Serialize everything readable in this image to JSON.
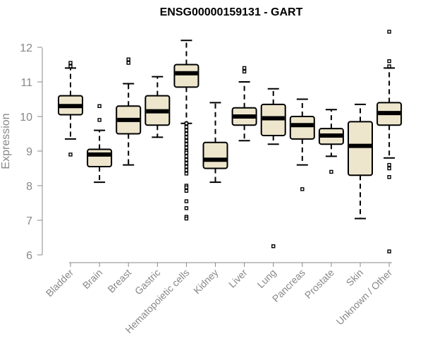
{
  "chart_data": {
    "type": "boxplot",
    "title": "ENSG00000159131 - GART",
    "ylabel": "Expression",
    "xlabel": "",
    "ylim": [
      6,
      12.5
    ],
    "yticks": [
      6,
      7,
      8,
      9,
      10,
      11,
      12
    ],
    "grid": false,
    "colors": {
      "box_fill": "#ede6cd",
      "box_stroke": "#000000",
      "median": "#000000",
      "axis": "#888888",
      "label": "#888888"
    },
    "categories": [
      "Bladder",
      "Brain",
      "Breast",
      "Gastric",
      "Hematopoietic cells",
      "Kidney",
      "Liver",
      "Lung",
      "Pancreas",
      "Prostate",
      "Skin",
      "Unknown / Other"
    ],
    "boxes": [
      {
        "category": "Bladder",
        "whisker_low": 9.35,
        "q1": 10.05,
        "median": 10.3,
        "q3": 10.6,
        "whisker_high": 11.4,
        "outliers": [
          8.9,
          11.45,
          11.55
        ]
      },
      {
        "category": "Brain",
        "whisker_low": 8.1,
        "q1": 8.55,
        "median": 8.9,
        "q3": 9.05,
        "whisker_high": 9.6,
        "outliers": [
          9.9,
          10.3
        ]
      },
      {
        "category": "Breast",
        "whisker_low": 8.6,
        "q1": 9.5,
        "median": 9.9,
        "q3": 10.3,
        "whisker_high": 10.95,
        "outliers": [
          11.55,
          11.65
        ]
      },
      {
        "category": "Gastric",
        "whisker_low": 9.4,
        "q1": 9.75,
        "median": 10.15,
        "q3": 10.6,
        "whisker_high": 11.15,
        "outliers": []
      },
      {
        "category": "Hematopoietic cells",
        "whisker_low": 9.8,
        "q1": 10.85,
        "median": 11.25,
        "q3": 11.5,
        "whisker_high": 12.2,
        "outliers": [
          9.8,
          9.7,
          9.6,
          9.5,
          9.4,
          9.3,
          9.2,
          9.1,
          9.0,
          8.95,
          8.85,
          8.75,
          8.65,
          8.55,
          8.45,
          8.35,
          8.0,
          7.95,
          7.85,
          7.55,
          7.35,
          7.1,
          7.05
        ]
      },
      {
        "category": "Kidney",
        "whisker_low": 8.1,
        "q1": 8.5,
        "median": 8.75,
        "q3": 9.25,
        "whisker_high": 10.4,
        "outliers": []
      },
      {
        "category": "Liver",
        "whisker_low": 9.3,
        "q1": 9.75,
        "median": 10.0,
        "q3": 10.25,
        "whisker_high": 11.0,
        "outliers": [
          11.3,
          11.4
        ]
      },
      {
        "category": "Lung",
        "whisker_low": 9.2,
        "q1": 9.45,
        "median": 9.95,
        "q3": 10.35,
        "whisker_high": 10.8,
        "outliers": [
          6.25
        ]
      },
      {
        "category": "Pancreas",
        "whisker_low": 8.6,
        "q1": 9.35,
        "median": 9.75,
        "q3": 10.0,
        "whisker_high": 10.5,
        "outliers": [
          7.9
        ]
      },
      {
        "category": "Prostate",
        "whisker_low": 8.85,
        "q1": 9.2,
        "median": 9.45,
        "q3": 9.65,
        "whisker_high": 10.2,
        "outliers": [
          8.4
        ]
      },
      {
        "category": "Skin",
        "whisker_low": 7.05,
        "q1": 8.3,
        "median": 9.15,
        "q3": 9.85,
        "whisker_high": 10.35,
        "outliers": []
      },
      {
        "category": "Unknown / Other",
        "whisker_low": 8.8,
        "q1": 9.75,
        "median": 10.1,
        "q3": 10.4,
        "whisker_high": 11.4,
        "outliers": [
          8.6,
          8.5,
          8.25,
          6.1,
          11.45,
          11.6,
          12.45
        ]
      }
    ]
  }
}
